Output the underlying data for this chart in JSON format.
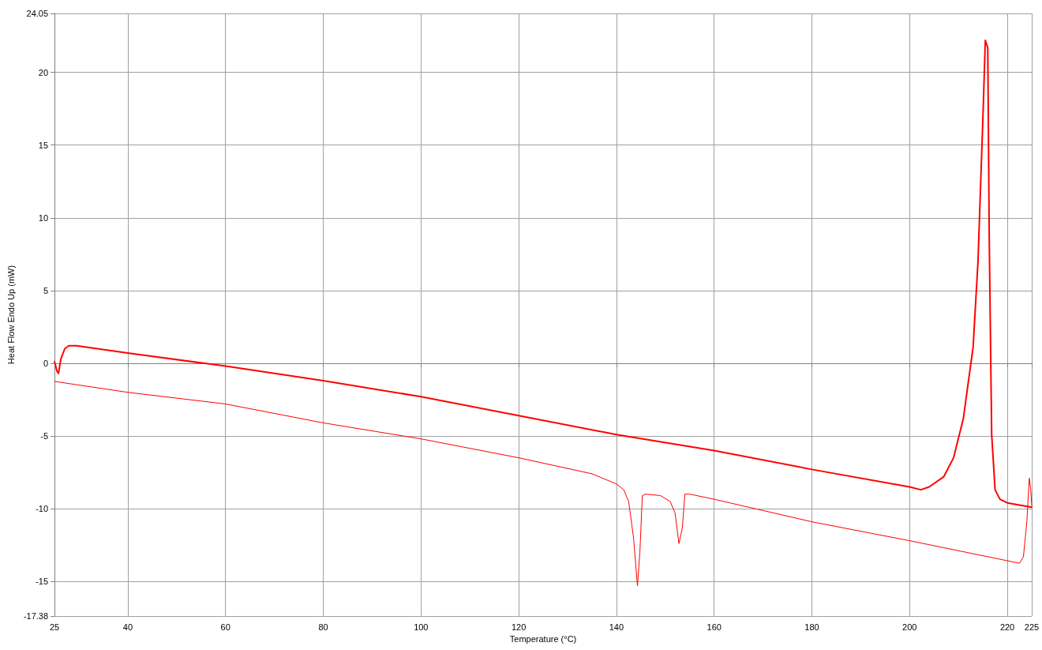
{
  "chart_data": {
    "type": "line",
    "xlabel": "Temperature (°C)",
    "ylabel": "Heat Flow Endo Up (mW)",
    "xlim": [
      25,
      225
    ],
    "ylim": [
      -17.38,
      24.05
    ],
    "xticks": [
      25,
      40,
      60,
      80,
      100,
      120,
      140,
      160,
      180,
      200,
      220,
      225
    ],
    "yticks": [
      -17.38,
      -15,
      -10,
      -5,
      0,
      5,
      10,
      15,
      20,
      24.05
    ],
    "grid": true,
    "marker": "none",
    "line_style": "solid",
    "series": [
      {
        "color": "#ff0000",
        "x": [
          25,
          25.5,
          25.8,
          26.3,
          27.1,
          27.9,
          29.5,
          40,
          60,
          80,
          100,
          120,
          140,
          160,
          180,
          200,
          202.3,
          204,
          207,
          209,
          211,
          213,
          214,
          215,
          215.5,
          216,
          216.3,
          216.8,
          217.5,
          218.5,
          220,
          225
        ],
        "values": [
          0.1,
          -0.54,
          -0.7,
          0.3,
          1.0,
          1.2,
          1.2,
          0.7,
          -0.2,
          -1.2,
          -2.3,
          -3.6,
          -4.9,
          -6.0,
          -7.3,
          -8.5,
          -8.7,
          -8.5,
          -7.8,
          -6.5,
          -3.8,
          1.1,
          7,
          16.8,
          22.2,
          21.7,
          8.7,
          -4.9,
          -8.7,
          -9.35,
          -9.6,
          -9.9
        ]
      },
      {
        "color": "#ff0000",
        "x": [
          25,
          40,
          60,
          80,
          100,
          120,
          135,
          140,
          141.5,
          142.5,
          143.5,
          144.3,
          144.8,
          145.3,
          146,
          149,
          151,
          152,
          152.8,
          153.5,
          154,
          155,
          160,
          180,
          200,
          222.5,
          223.3,
          224,
          224.5,
          224.8,
          225
        ],
        "values": [
          -1.25,
          -2.0,
          -2.8,
          -4.1,
          -5.2,
          -6.5,
          -7.6,
          -8.3,
          -8.7,
          -9.5,
          -12.0,
          -15.3,
          -13.0,
          -9.1,
          -9.0,
          -9.1,
          -9.5,
          -10.3,
          -12.4,
          -11.3,
          -9.0,
          -9.0,
          -9.35,
          -10.9,
          -12.2,
          -13.75,
          -13.3,
          -10.9,
          -7.9,
          -8.7,
          -9.8
        ]
      }
    ]
  }
}
